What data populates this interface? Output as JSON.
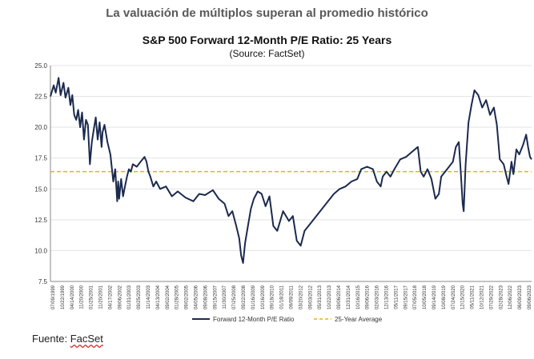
{
  "page": {
    "headline": "La valuación de múltiplos superan al promedio histórico",
    "source_label": "Fuente:",
    "source_brand": "FacSet"
  },
  "colors": {
    "series": "#1b2a4e",
    "average": "#f0b400",
    "axis": "#888888",
    "grid": "#e3e3e3"
  },
  "chart_data": {
    "type": "line",
    "title": "S&P 500 Forward 12-Month P/E Ratio: 25 Years",
    "subtitle": "(Source: FactSet)",
    "xlabel": "",
    "ylabel": "",
    "ylim": [
      7.5,
      25.0
    ],
    "yticks": [
      "25.0",
      "22.5",
      "20.0",
      "17.5",
      "15.0",
      "12.5",
      "10.0",
      "7.5"
    ],
    "xlim": [
      1999.08,
      2023.73
    ],
    "xticks": [
      "07/09/1999",
      "10/22/1999",
      "04/14/2000",
      "11/20/2000",
      "01/25/2001",
      "11/20/2001",
      "04/17/2002",
      "09/06/2002",
      "01/31/2003",
      "09/25/2003",
      "11/14/2003",
      "04/13/2004",
      "09/02/2004",
      "01/28/2005",
      "09/02/2005",
      "04/05/2006",
      "09/08/2006",
      "09/15/2007",
      "11/30/2007",
      "07/25/2008",
      "09/22/2008",
      "01/16/2009",
      "10/16/2009",
      "09/18/2010",
      "01/18/2011",
      "09/09/2011",
      "03/20/2012",
      "09/03/2012",
      "05/31/2013",
      "10/22/2013",
      "09/06/2014",
      "12/31/2014",
      "10/16/2015",
      "09/06/2016",
      "02/03/2016",
      "12/13/2016",
      "05/11/2017",
      "09/15/2017",
      "07/05/2018",
      "10/05/2018",
      "09/14/2019",
      "10/08/2019",
      "07/24/2020",
      "12/15/2020",
      "05/11/2021",
      "10/12/2021",
      "07/29/2022",
      "02/28/2023",
      "12/06/2022",
      "06/09/2023",
      "09/06/2023"
    ],
    "legend": [
      "Forward 12-Month P/E Ratio",
      "25-Year Average"
    ],
    "series": [
      {
        "name": "Forward 12-Month P/E Ratio",
        "x": [
          1999.08,
          1999.25,
          1999.35,
          1999.5,
          1999.6,
          1999.75,
          1999.85,
          2000.0,
          2000.1,
          2000.2,
          2000.3,
          2000.4,
          2000.5,
          2000.6,
          2000.7,
          2000.8,
          2000.9,
          2001.0,
          2001.1,
          2001.2,
          2001.3,
          2001.4,
          2001.5,
          2001.6,
          2001.7,
          2001.75,
          2001.85,
          2002.0,
          2002.15,
          2002.3,
          2002.4,
          2002.5,
          2002.55,
          2002.6,
          2002.7,
          2002.8,
          2002.9,
          2003.0,
          2003.1,
          2003.2,
          2003.3,
          2003.5,
          2003.7,
          2003.9,
          2004.0,
          2004.1,
          2004.2,
          2004.35,
          2004.5,
          2004.7,
          2005.0,
          2005.3,
          2005.6,
          2006.0,
          2006.4,
          2006.7,
          2007.0,
          2007.4,
          2007.7,
          2008.0,
          2008.2,
          2008.4,
          2008.6,
          2008.75,
          2008.85,
          2008.95,
          2009.05,
          2009.2,
          2009.35,
          2009.5,
          2009.7,
          2009.9,
          2010.1,
          2010.3,
          2010.5,
          2010.7,
          2011.0,
          2011.3,
          2011.5,
          2011.7,
          2011.9,
          2012.1,
          2012.4,
          2012.7,
          2013.0,
          2013.3,
          2013.6,
          2013.9,
          2014.2,
          2014.5,
          2014.8,
          2015.0,
          2015.3,
          2015.6,
          2015.8,
          2016.0,
          2016.1,
          2016.3,
          2016.5,
          2016.7,
          2017.0,
          2017.3,
          2017.6,
          2017.9,
          2018.05,
          2018.2,
          2018.4,
          2018.6,
          2018.8,
          2018.98,
          2019.1,
          2019.3,
          2019.5,
          2019.7,
          2019.85,
          2020.0,
          2020.1,
          2020.2,
          2020.25,
          2020.35,
          2020.5,
          2020.65,
          2020.8,
          2021.0,
          2021.2,
          2021.4,
          2021.6,
          2021.8,
          2021.95,
          2022.1,
          2022.3,
          2022.45,
          2022.55,
          2022.7,
          2022.8,
          2022.95,
          2023.1,
          2023.3,
          2023.45,
          2023.55,
          2023.65,
          2023.73
        ],
        "y": [
          22.5,
          23.4,
          22.8,
          24.0,
          22.6,
          23.6,
          22.4,
          23.2,
          21.8,
          22.6,
          21.0,
          20.6,
          21.4,
          20.0,
          21.2,
          19.0,
          20.6,
          20.2,
          17.0,
          18.8,
          19.8,
          20.8,
          19.0,
          20.4,
          18.4,
          19.6,
          20.2,
          18.8,
          17.8,
          15.6,
          16.6,
          14.0,
          15.6,
          14.2,
          15.8,
          14.4,
          15.2,
          16.0,
          16.6,
          16.4,
          17.0,
          16.8,
          17.2,
          17.6,
          17.2,
          16.4,
          16.0,
          15.2,
          15.6,
          15.0,
          15.2,
          14.4,
          14.8,
          14.3,
          14.0,
          14.6,
          14.5,
          14.9,
          14.2,
          13.8,
          12.8,
          13.2,
          12.0,
          11.0,
          9.6,
          9.0,
          10.6,
          12.0,
          13.4,
          14.2,
          14.8,
          14.6,
          13.6,
          14.4,
          12.0,
          11.6,
          13.2,
          12.4,
          12.8,
          10.8,
          10.4,
          11.6,
          12.2,
          12.8,
          13.4,
          14.0,
          14.6,
          15.0,
          15.2,
          15.6,
          15.8,
          16.6,
          16.8,
          16.6,
          15.6,
          15.2,
          16.0,
          16.4,
          16.0,
          16.6,
          17.4,
          17.6,
          18.0,
          18.4,
          16.4,
          16.0,
          16.6,
          15.8,
          14.2,
          14.6,
          16.0,
          16.4,
          16.8,
          17.2,
          18.4,
          18.8,
          16.4,
          13.8,
          13.2,
          17.0,
          20.4,
          21.8,
          23.0,
          22.6,
          21.6,
          22.2,
          21.0,
          21.6,
          20.2,
          17.4,
          17.0,
          16.0,
          15.4,
          17.2,
          16.2,
          18.2,
          17.8,
          18.6,
          19.4,
          18.4,
          17.6,
          17.4
        ]
      }
    ],
    "average": 16.4
  }
}
